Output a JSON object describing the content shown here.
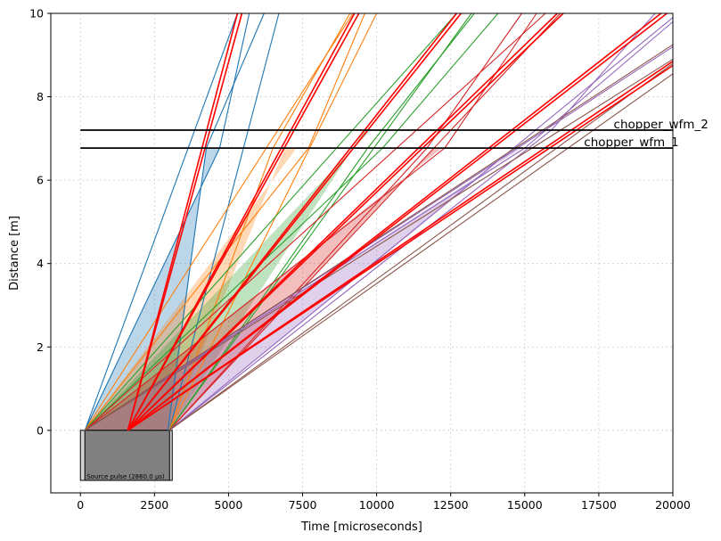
{
  "chart_data": {
    "type": "line",
    "xlabel": "Time [microseconds]",
    "ylabel": "Distance [m]",
    "xlim": [
      -1000,
      20000
    ],
    "ylim": [
      -1.5,
      10
    ],
    "grid": true,
    "xticks": [
      0,
      2500,
      5000,
      7500,
      10000,
      12500,
      15000,
      17500,
      20000
    ],
    "xtick_labels": [
      "0",
      "2500",
      "5000",
      "7500",
      "10000",
      "12500",
      "15000",
      "17500",
      "20000"
    ],
    "yticks": [
      0,
      2,
      4,
      6,
      8,
      10
    ],
    "ytick_labels": [
      "0",
      "2",
      "4",
      "6",
      "8",
      "10"
    ],
    "source_pulse": {
      "label": "Source pulse (2860.0 µs)",
      "t_start": 0,
      "t_end": 3100,
      "inner_start": 150,
      "inner_end": 3010,
      "y_bottom": -1.2,
      "y_top": 0,
      "fill_color": "#808080"
    },
    "choppers": [
      {
        "name": "chopper_wfm_2",
        "distance": 7.2,
        "segments": [
          [
            0,
            20000
          ]
        ],
        "label_time": 18000
      },
      {
        "name": "chopper_wfm_1",
        "distance": 6.77,
        "segments": [
          [
            0,
            20000
          ]
        ],
        "label_time": 17000
      }
    ],
    "frames": [
      {
        "color": "#1f77b4",
        "fill": "#1f77b4",
        "lines": [
          [
            [
              150,
              0
            ],
            [
              5300,
              10
            ]
          ],
          [
            [
              3000,
              0
            ],
            [
              6700,
              10
            ]
          ],
          [
            [
              150,
              0
            ],
            [
              4700,
              6.77
            ]
          ],
          [
            [
              2950,
              0
            ],
            [
              4250,
              6.77
            ]
          ],
          [
            [
              4700,
              6.77
            ],
            [
              5700,
              10
            ]
          ],
          [
            [
              4250,
              6.77
            ],
            [
              6200,
              10
            ]
          ]
        ],
        "band": [
          [
            150,
            0
          ],
          [
            4700,
            6.77
          ],
          [
            4250,
            6.77
          ],
          [
            3000,
            0
          ]
        ]
      },
      {
        "color": "#ff7f0e",
        "fill": "#ff7f0e",
        "lines": [
          [
            [
              150,
              0
            ],
            [
              9200,
              10
            ]
          ],
          [
            [
              3000,
              0
            ],
            [
              10000,
              10
            ]
          ],
          [
            [
              150,
              0
            ],
            [
              7700,
              6.77
            ]
          ],
          [
            [
              3000,
              0
            ],
            [
              6500,
              6.77
            ]
          ],
          [
            [
              7700,
              6.77
            ],
            [
              9600,
              10
            ]
          ],
          [
            [
              6500,
              6.77
            ],
            [
              9100,
              10
            ]
          ]
        ],
        "band": [
          [
            150,
            0
          ],
          [
            7300,
            6.77
          ],
          [
            6900,
            6.77
          ],
          [
            3000,
            0
          ]
        ]
      },
      {
        "color": "#2ca02c",
        "fill": "#2ca02c",
        "lines": [
          [
            [
              150,
              0
            ],
            [
              12700,
              10
            ]
          ],
          [
            [
              3000,
              0
            ],
            [
              13200,
              10
            ]
          ],
          [
            [
              150,
              0
            ],
            [
              10200,
              6.77
            ]
          ],
          [
            [
              3000,
              0
            ],
            [
              9700,
              6.77
            ]
          ],
          [
            [
              9700,
              6.77
            ],
            [
              13300,
              10
            ]
          ],
          [
            [
              10200,
              6.77
            ],
            [
              14100,
              10
            ]
          ]
        ],
        "band": [
          [
            150,
            0
          ],
          [
            9800,
            7.2
          ],
          [
            9600,
            7.2
          ],
          [
            3000,
            0
          ]
        ]
      },
      {
        "color": "#d62728",
        "fill": "#d62728",
        "lines": [
          [
            [
              150,
              0
            ],
            [
              15700,
              10
            ]
          ],
          [
            [
              3000,
              0
            ],
            [
              16200,
              10
            ]
          ],
          [
            [
              150,
              0
            ],
            [
              12300,
              6.77
            ]
          ],
          [
            [
              3000,
              0
            ],
            [
              11700,
              6.77
            ]
          ],
          [
            [
              12300,
              6.77
            ],
            [
              15400,
              10
            ]
          ],
          [
            [
              11700,
              6.77
            ],
            [
              14900,
              10
            ]
          ]
        ],
        "band": [
          [
            150,
            0
          ],
          [
            12200,
            6.77
          ],
          [
            11900,
            6.77
          ],
          [
            3000,
            0
          ]
        ]
      },
      {
        "color": "#9467bd",
        "fill": "#9467bd",
        "lines": [
          [
            [
              150,
              0
            ],
            [
              20000,
              9.2
            ]
          ],
          [
            [
              3000,
              0
            ],
            [
              20000,
              9.9
            ]
          ],
          [
            [
              150,
              0
            ],
            [
              15000,
              6.77
            ]
          ],
          [
            [
              3000,
              0
            ],
            [
              15900,
              7.2
            ]
          ],
          [
            [
              15000,
              6.77
            ],
            [
              20000,
              9.8
            ]
          ],
          [
            [
              15900,
              7.2
            ],
            [
              19400,
              10
            ]
          ]
        ],
        "band": [
          [
            150,
            0
          ],
          [
            14900,
            6.77
          ],
          [
            14700,
            6.77
          ],
          [
            3000,
            0
          ]
        ]
      },
      {
        "color": "#8c564b",
        "fill": "#8c564b",
        "lines": [
          [
            [
              150,
              0
            ],
            [
              20000,
              9.25
            ]
          ],
          [
            [
              3000,
              0
            ],
            [
              20000,
              8.55
            ]
          ],
          [
            [
              150,
              0
            ],
            [
              20000,
              8.9
            ]
          ],
          [
            [
              3000,
              0
            ],
            [
              20000,
              8.8
            ]
          ]
        ],
        "band": []
      }
    ],
    "highlight_color": "#ff0000",
    "highlight_lines": [
      [
        [
          1600,
          0
        ],
        [
          5300,
          10
        ]
      ],
      [
        [
          1600,
          0
        ],
        [
          5450,
          10
        ]
      ],
      [
        [
          1600,
          0
        ],
        [
          9250,
          10
        ]
      ],
      [
        [
          1600,
          0
        ],
        [
          9400,
          10
        ]
      ],
      [
        [
          1600,
          0
        ],
        [
          12700,
          10
        ]
      ],
      [
        [
          1600,
          0
        ],
        [
          12850,
          10
        ]
      ],
      [
        [
          1600,
          0
        ],
        [
          16100,
          10
        ]
      ],
      [
        [
          1600,
          0
        ],
        [
          16300,
          10
        ]
      ],
      [
        [
          1600,
          0
        ],
        [
          19600,
          10
        ]
      ],
      [
        [
          1600,
          0
        ],
        [
          19800,
          10
        ]
      ],
      [
        [
          1600,
          0
        ],
        [
          20000,
          8.85
        ]
      ],
      [
        [
          1600,
          0
        ],
        [
          20000,
          8.75
        ]
      ]
    ]
  }
}
